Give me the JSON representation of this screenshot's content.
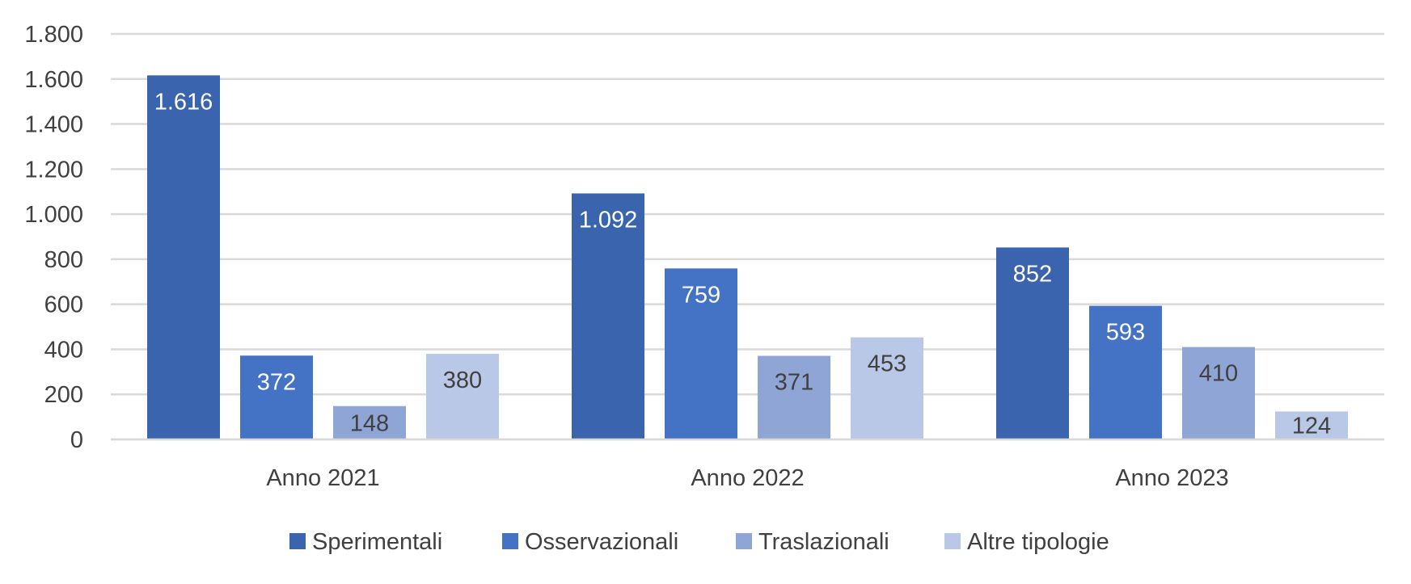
{
  "chart_data": {
    "type": "bar",
    "categories": [
      "Anno 2021",
      "Anno 2022",
      "Anno 2023"
    ],
    "series": [
      {
        "name": "Sperimentali",
        "values": [
          1616,
          1092,
          852
        ],
        "labels": [
          "1.616",
          "1.092",
          "852"
        ],
        "color": "#3A64AD",
        "label_color": "#ffffff"
      },
      {
        "name": "Osservazionali",
        "values": [
          372,
          759,
          593
        ],
        "labels": [
          "372",
          "759",
          "593"
        ],
        "color": "#4472C4",
        "label_color": "#ffffff"
      },
      {
        "name": "Traslazionali",
        "values": [
          148,
          371,
          410
        ],
        "labels": [
          "148",
          "371",
          "410"
        ],
        "color": "#8EA5D5",
        "label_color": "#404040"
      },
      {
        "name": "Altre tipologie",
        "values": [
          380,
          453,
          124
        ],
        "labels": [
          "380",
          "453",
          "124"
        ],
        "color": "#B9C8E6",
        "label_color": "#404040"
      }
    ],
    "ylim": [
      0,
      1800
    ],
    "yticks": [
      0,
      200,
      400,
      600,
      800,
      1000,
      1200,
      1400,
      1600,
      1800
    ],
    "ytick_labels": [
      "0",
      "200",
      "400",
      "600",
      "800",
      "1.000",
      "1.200",
      "1.400",
      "1.600",
      "1.800"
    ],
    "grid": true,
    "legend_position": "bottom",
    "gridline_color": "#D9D9D9"
  }
}
